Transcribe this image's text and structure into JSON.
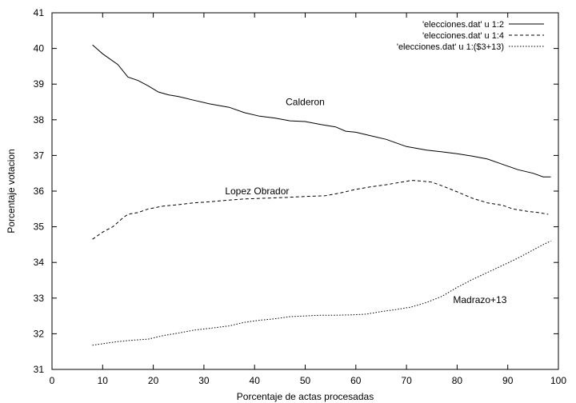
{
  "chart_data": {
    "type": "line",
    "title": "",
    "xlabel": "Porcentaje de actas procesadas",
    "ylabel": "Porcentaje votacion",
    "xlim": [
      0,
      100
    ],
    "ylim": [
      31,
      41
    ],
    "xticks": [
      0,
      10,
      20,
      30,
      40,
      50,
      60,
      70,
      80,
      90,
      100
    ],
    "yticks": [
      31,
      32,
      33,
      34,
      35,
      36,
      37,
      38,
      39,
      40,
      41
    ],
    "grid": false,
    "legend_position": "top-right",
    "series": [
      {
        "name": "'elecciones.dat' u 1:2",
        "style": "solid",
        "color": "#000000",
        "points": [
          [
            8,
            40.1
          ],
          [
            10,
            39.85
          ],
          [
            13,
            39.55
          ],
          [
            15,
            39.2
          ],
          [
            17,
            39.1
          ],
          [
            19,
            38.95
          ],
          [
            21,
            38.78
          ],
          [
            23,
            38.7
          ],
          [
            25,
            38.65
          ],
          [
            28,
            38.55
          ],
          [
            31,
            38.45
          ],
          [
            35,
            38.35
          ],
          [
            38,
            38.2
          ],
          [
            41,
            38.1
          ],
          [
            44,
            38.05
          ],
          [
            47,
            37.97
          ],
          [
            50,
            37.95
          ],
          [
            53,
            37.87
          ],
          [
            56,
            37.8
          ],
          [
            58,
            37.68
          ],
          [
            60,
            37.65
          ],
          [
            63,
            37.55
          ],
          [
            66,
            37.45
          ],
          [
            68,
            37.35
          ],
          [
            70,
            37.25
          ],
          [
            72,
            37.2
          ],
          [
            74,
            37.15
          ],
          [
            77,
            37.1
          ],
          [
            80,
            37.05
          ],
          [
            83,
            36.98
          ],
          [
            86,
            36.9
          ],
          [
            88,
            36.8
          ],
          [
            90,
            36.7
          ],
          [
            92,
            36.6
          ],
          [
            95,
            36.5
          ],
          [
            97,
            36.4
          ],
          [
            98.5,
            36.4
          ]
        ]
      },
      {
        "name": "'elecciones.dat' u 1:4",
        "style": "dashed",
        "color": "#000000",
        "points": [
          [
            8,
            34.65
          ],
          [
            10,
            34.85
          ],
          [
            12,
            35.0
          ],
          [
            14,
            35.25
          ],
          [
            15,
            35.35
          ],
          [
            17,
            35.4
          ],
          [
            19,
            35.5
          ],
          [
            22,
            35.58
          ],
          [
            25,
            35.62
          ],
          [
            28,
            35.67
          ],
          [
            31,
            35.7
          ],
          [
            35,
            35.75
          ],
          [
            38,
            35.78
          ],
          [
            42,
            35.8
          ],
          [
            46,
            35.82
          ],
          [
            50,
            35.85
          ],
          [
            54,
            35.87
          ],
          [
            57,
            35.95
          ],
          [
            60,
            36.05
          ],
          [
            63,
            36.12
          ],
          [
            66,
            36.18
          ],
          [
            69,
            36.25
          ],
          [
            71,
            36.3
          ],
          [
            73,
            36.28
          ],
          [
            75,
            36.25
          ],
          [
            77,
            36.15
          ],
          [
            80,
            35.98
          ],
          [
            83,
            35.8
          ],
          [
            86,
            35.67
          ],
          [
            89,
            35.6
          ],
          [
            91,
            35.5
          ],
          [
            94,
            35.43
          ],
          [
            96,
            35.4
          ],
          [
            98,
            35.35
          ]
        ]
      },
      {
        "name": "'elecciones.dat' u 1:($3+13)",
        "style": "dotted",
        "color": "#000000",
        "points": [
          [
            8,
            31.68
          ],
          [
            10,
            31.72
          ],
          [
            13,
            31.78
          ],
          [
            16,
            31.82
          ],
          [
            19,
            31.85
          ],
          [
            22,
            31.95
          ],
          [
            25,
            32.02
          ],
          [
            28,
            32.1
          ],
          [
            31,
            32.15
          ],
          [
            35,
            32.22
          ],
          [
            38,
            32.32
          ],
          [
            41,
            32.38
          ],
          [
            44,
            32.42
          ],
          [
            47,
            32.48
          ],
          [
            50,
            32.5
          ],
          [
            53,
            32.52
          ],
          [
            56,
            32.52
          ],
          [
            59,
            32.53
          ],
          [
            62,
            32.55
          ],
          [
            65,
            32.62
          ],
          [
            68,
            32.68
          ],
          [
            71,
            32.75
          ],
          [
            74,
            32.88
          ],
          [
            77,
            33.05
          ],
          [
            80,
            33.3
          ],
          [
            83,
            33.52
          ],
          [
            86,
            33.72
          ],
          [
            89,
            33.92
          ],
          [
            92,
            34.12
          ],
          [
            95,
            34.35
          ],
          [
            97,
            34.5
          ],
          [
            98.5,
            34.6
          ]
        ]
      }
    ],
    "annotations": [
      {
        "text": "Calderon",
        "x": 50,
        "y": 38.5
      },
      {
        "text": "Lopez Obrador",
        "x": 40.5,
        "y": 36.0
      },
      {
        "text": "Madrazo+13",
        "x": 84.5,
        "y": 32.95
      }
    ]
  }
}
